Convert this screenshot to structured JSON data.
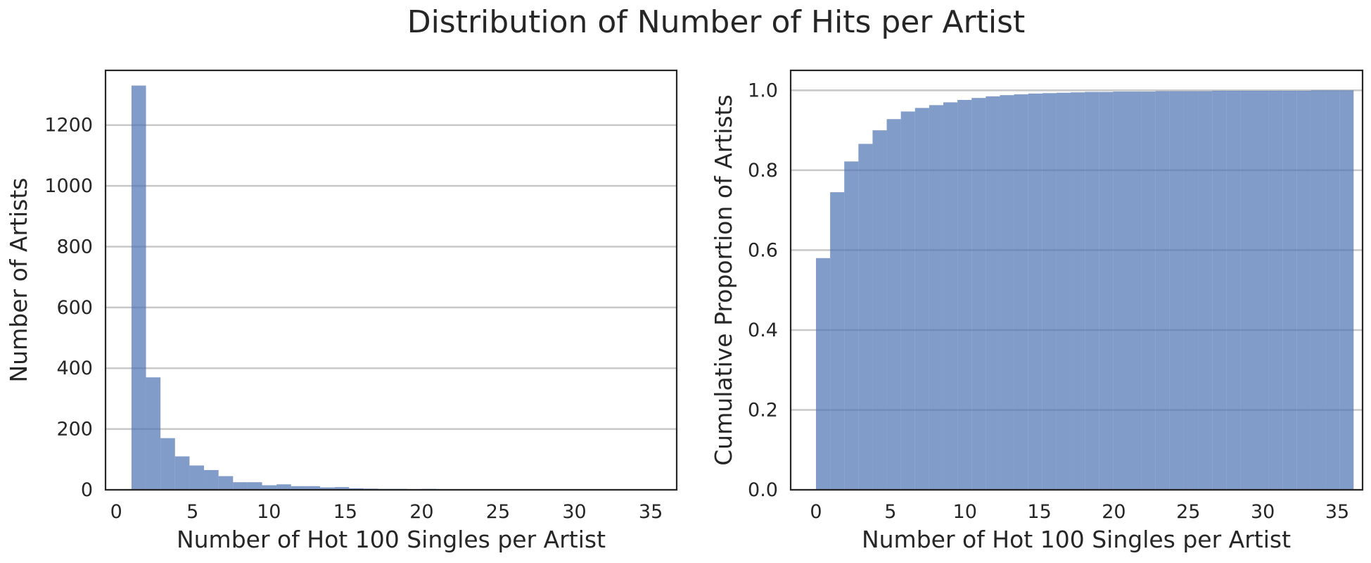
{
  "title": "Distribution of Number of Hits per Artist",
  "chart_data": [
    {
      "type": "bar",
      "xlabel": "Number of Hot 100 Singles per Artist",
      "ylabel": "Number of Artists",
      "xlim": [
        -0.7,
        36.7
      ],
      "ylim": [
        0,
        1380
      ],
      "xticks": [
        0,
        5,
        10,
        15,
        20,
        25,
        30,
        35
      ],
      "yticks": [
        0,
        200,
        400,
        600,
        800,
        1000,
        1200
      ],
      "grid": "y",
      "bin_edges": [
        1,
        1.95,
        2.9,
        3.85,
        4.8,
        5.75,
        6.7,
        7.65,
        8.6,
        9.55,
        10.5,
        11.45,
        12.4,
        13.35,
        14.3,
        15.25,
        16.2,
        17.15,
        18.1,
        19.05,
        20,
        20.95,
        21.9,
        22.85,
        23.8,
        24.75,
        25.7,
        26.65,
        27.6,
        28.55,
        29.5,
        30.45,
        31.4,
        32.35,
        33.3,
        34.25,
        35.2,
        36.15
      ],
      "values": [
        1330,
        370,
        170,
        110,
        80,
        65,
        45,
        25,
        25,
        15,
        18,
        12,
        12,
        8,
        9,
        5,
        4,
        3,
        3,
        2,
        3,
        2,
        1,
        2,
        1,
        1,
        1,
        1,
        2,
        1,
        1,
        1,
        1,
        1,
        1,
        1,
        1
      ]
    },
    {
      "type": "bar",
      "xlabel": "Number of Hot 100 Singles per Artist",
      "ylabel": "Cumulative Proportion of Artists",
      "xlim": [
        -1.7,
        36.7
      ],
      "ylim": [
        0,
        1.05
      ],
      "xticks": [
        0,
        5,
        10,
        15,
        20,
        25,
        30,
        35
      ],
      "yticks": [
        0.0,
        0.2,
        0.4,
        0.6,
        0.8,
        1.0
      ],
      "ytick_labels": [
        "0.0",
        "0.2",
        "0.4",
        "0.6",
        "0.8",
        "1.0"
      ],
      "grid": "y",
      "bin_edges": [
        0,
        0.95,
        1.9,
        2.85,
        3.8,
        4.75,
        5.7,
        6.65,
        7.6,
        8.55,
        9.5,
        10.45,
        11.4,
        12.35,
        13.3,
        14.25,
        15.2,
        16.15,
        17.1,
        18.05,
        19,
        19.95,
        20.9,
        21.85,
        22.8,
        23.75,
        24.7,
        25.65,
        26.6,
        27.55,
        28.5,
        29.45,
        30.4,
        31.35,
        32.3,
        33.25,
        34.2,
        35.15,
        36.1
      ],
      "values": [
        0.58,
        0.745,
        0.822,
        0.866,
        0.9,
        0.928,
        0.947,
        0.956,
        0.963,
        0.97,
        0.976,
        0.981,
        0.985,
        0.988,
        0.99,
        0.992,
        0.993,
        0.994,
        0.995,
        0.996,
        0.996,
        0.997,
        0.997,
        0.997,
        0.998,
        0.998,
        0.998,
        0.998,
        0.999,
        0.999,
        0.999,
        0.999,
        0.999,
        0.999,
        0.999,
        1.0,
        1.0,
        1.0
      ]
    }
  ]
}
